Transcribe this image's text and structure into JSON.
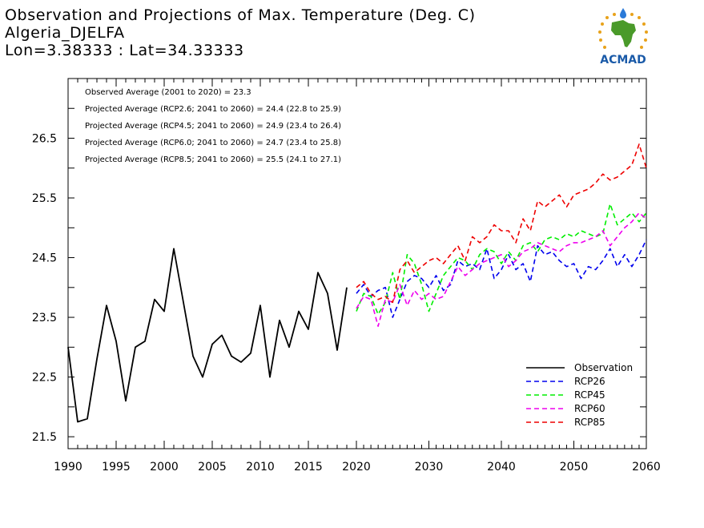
{
  "header": {
    "title": "Observation and Projections of Max. Temperature (Deg. C)",
    "location": "Algeria_DJELFA",
    "coords": "Lon=3.38333 : Lat=34.33333"
  },
  "logo": {
    "text": "ACMAD",
    "colors": {
      "africa": "#4a9a2a",
      "text": "#1a5aa8",
      "stars": "#e8a21a",
      "drop": "#2a7ad8"
    }
  },
  "chart_data": {
    "type": "line",
    "xlim": [
      1990,
      2060
    ],
    "ylim": [
      21.3,
      27.5
    ],
    "x_ticks": [
      "1990",
      "1995",
      "2000",
      "2005",
      "2010",
      "2015",
      "2020",
      "2030",
      "2040",
      "2050",
      "2060"
    ],
    "x_tick_values": [
      1990,
      1995,
      2000,
      2005,
      2010,
      2015,
      2020,
      2030,
      2040,
      2050,
      2060
    ],
    "y_ticks": [
      "21.5",
      "22.5",
      "23.5",
      "24.5",
      "25.5",
      "26.5"
    ],
    "y_tick_values": [
      21.5,
      22.5,
      23.5,
      24.5,
      25.5,
      26.5
    ],
    "annotations": [
      "Observed Average (2001 to 2020) = 23.3",
      "Projected Average (RCP2.6; 2041 to 2060) = 24.4 (22.8 to 25.9)",
      "Projected Average (RCP4.5; 2041 to 2060) = 24.9 (23.4 to 26.4)",
      "Projected Average (RCP6.0; 2041 to 2060) = 24.7 (23.4 to 25.8)",
      "Projected Average (RCP8.5; 2041 to 2060) = 25.5 (24.1 to 27.1)"
    ],
    "legend_position": "bottom-right",
    "series": [
      {
        "name": "Observation",
        "color": "#000000",
        "dash": false,
        "x": [
          1990,
          1991,
          1992,
          1993,
          1994,
          1995,
          1996,
          1997,
          1998,
          1999,
          2000,
          2001,
          2002,
          2003,
          2004,
          2005,
          2006,
          2007,
          2008,
          2009,
          2010,
          2011,
          2012,
          2013,
          2014,
          2015,
          2016,
          2017,
          2018,
          2019,
          2020
        ],
        "y": [
          23.0,
          21.75,
          21.8,
          22.8,
          23.7,
          23.1,
          22.1,
          23.0,
          23.1,
          23.8,
          23.6,
          24.65,
          23.75,
          22.85,
          22.5,
          23.05,
          23.2,
          22.85,
          22.75,
          22.9,
          23.7,
          22.5,
          23.45,
          23.0,
          23.6,
          23.3,
          24.25,
          23.9,
          22.95,
          24.0,
          null
        ]
      },
      {
        "name": "RCP26",
        "color": "#0000ee",
        "dash": true,
        "x": [
          2020,
          2021,
          2022,
          2023,
          2024,
          2025,
          2026,
          2027,
          2028,
          2029,
          2030,
          2031,
          2032,
          2033,
          2034,
          2035,
          2036,
          2037,
          2038,
          2039,
          2040,
          2041,
          2042,
          2043,
          2044,
          2045,
          2046,
          2047,
          2048,
          2049,
          2050,
          2051,
          2052,
          2053,
          2054,
          2055,
          2056,
          2057,
          2058,
          2059,
          2060
        ],
        "y": [
          23.9,
          24.05,
          23.85,
          23.95,
          24.0,
          23.5,
          23.8,
          24.1,
          24.2,
          24.15,
          24.0,
          24.2,
          23.95,
          24.05,
          24.45,
          24.35,
          24.4,
          24.3,
          24.65,
          24.15,
          24.3,
          24.55,
          24.3,
          24.4,
          24.1,
          24.7,
          24.55,
          24.6,
          24.45,
          24.35,
          24.4,
          24.15,
          24.35,
          24.3,
          24.45,
          24.65,
          24.35,
          24.55,
          24.35,
          24.55,
          24.8
        ]
      },
      {
        "name": "RCP45",
        "color": "#00ee00",
        "dash": true,
        "x": [
          2020,
          2021,
          2022,
          2023,
          2024,
          2025,
          2026,
          2027,
          2028,
          2029,
          2030,
          2031,
          2032,
          2033,
          2034,
          2035,
          2036,
          2037,
          2038,
          2039,
          2040,
          2041,
          2042,
          2043,
          2044,
          2045,
          2046,
          2047,
          2048,
          2049,
          2050,
          2051,
          2052,
          2053,
          2054,
          2055,
          2056,
          2057,
          2058,
          2059,
          2060
        ],
        "y": [
          23.6,
          23.9,
          23.85,
          23.55,
          23.75,
          24.25,
          23.8,
          24.55,
          24.4,
          24.05,
          23.6,
          23.9,
          24.2,
          24.35,
          24.5,
          24.45,
          24.3,
          24.55,
          24.65,
          24.6,
          24.4,
          24.6,
          24.45,
          24.7,
          24.75,
          24.6,
          24.8,
          24.85,
          24.8,
          24.9,
          24.85,
          24.95,
          24.9,
          24.85,
          24.9,
          25.4,
          25.05,
          25.15,
          25.25,
          25.1,
          25.25
        ]
      },
      {
        "name": "RCP60",
        "color": "#ee00ee",
        "dash": true,
        "x": [
          2020,
          2021,
          2022,
          2023,
          2024,
          2025,
          2026,
          2027,
          2028,
          2029,
          2030,
          2031,
          2032,
          2033,
          2034,
          2035,
          2036,
          2037,
          2038,
          2039,
          2040,
          2041,
          2042,
          2043,
          2044,
          2045,
          2046,
          2047,
          2048,
          2049,
          2050,
          2051,
          2052,
          2053,
          2054,
          2055,
          2056,
          2057,
          2058,
          2059,
          2060
        ],
        "y": [
          23.65,
          23.85,
          23.8,
          23.35,
          23.8,
          23.75,
          24.05,
          23.7,
          23.95,
          23.8,
          23.9,
          23.8,
          23.85,
          24.1,
          24.35,
          24.2,
          24.3,
          24.4,
          24.45,
          24.5,
          24.55,
          24.35,
          24.45,
          24.6,
          24.65,
          24.75,
          24.7,
          24.65,
          24.6,
          24.7,
          24.75,
          24.75,
          24.8,
          24.85,
          24.95,
          24.7,
          24.85,
          25.0,
          25.1,
          25.25,
          25.15
        ]
      },
      {
        "name": "RCP85",
        "color": "#ee0000",
        "dash": true,
        "x": [
          2020,
          2021,
          2022,
          2023,
          2024,
          2025,
          2026,
          2027,
          2028,
          2029,
          2030,
          2031,
          2032,
          2033,
          2034,
          2035,
          2036,
          2037,
          2038,
          2039,
          2040,
          2041,
          2042,
          2043,
          2044,
          2045,
          2046,
          2047,
          2048,
          2049,
          2050,
          2051,
          2052,
          2053,
          2054,
          2055,
          2056,
          2057,
          2058,
          2059,
          2060
        ],
        "y": [
          24.0,
          24.1,
          23.9,
          23.8,
          23.85,
          23.75,
          24.3,
          24.45,
          24.25,
          24.35,
          24.45,
          24.5,
          24.4,
          24.55,
          24.7,
          24.45,
          24.85,
          24.75,
          24.85,
          25.05,
          24.95,
          24.95,
          24.75,
          25.15,
          24.95,
          25.45,
          25.35,
          25.45,
          25.55,
          25.35,
          25.55,
          25.6,
          25.65,
          25.75,
          25.9,
          25.8,
          25.85,
          25.95,
          26.05,
          26.4,
          26.0
        ]
      }
    ]
  }
}
